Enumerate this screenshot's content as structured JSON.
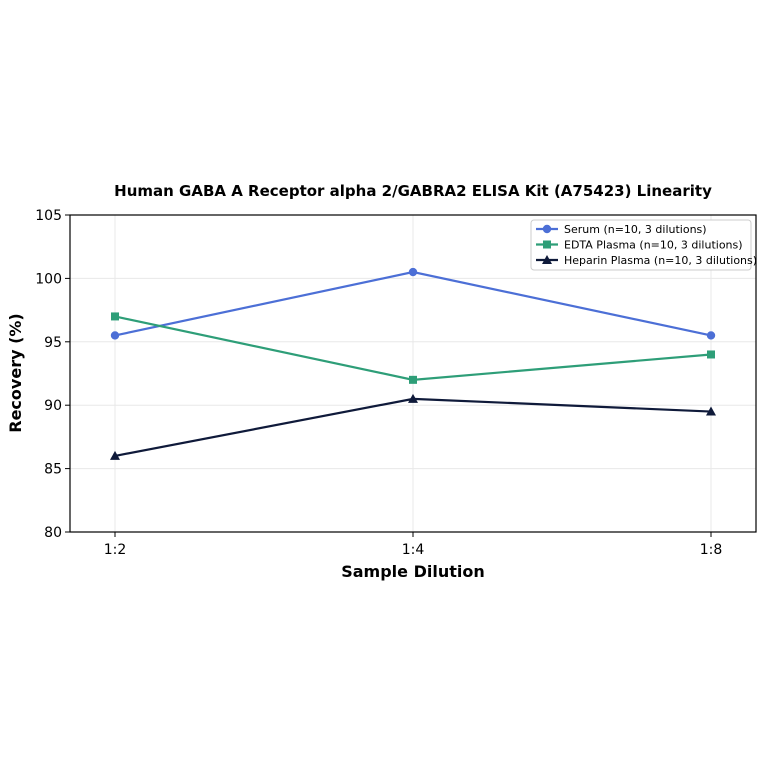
{
  "chart_data": {
    "type": "line",
    "title": "Human GABA A Receptor alpha 2/GABRA2 ELISA Kit (A75423) Linearity",
    "xlabel": "Sample Dilution",
    "ylabel": "Recovery (%)",
    "categories": [
      "1:2",
      "1:4",
      "1:8"
    ],
    "ylim": [
      80,
      105
    ],
    "yticks": [
      80,
      85,
      90,
      95,
      100,
      105
    ],
    "grid": true,
    "legend_position": "top-right",
    "series": [
      {
        "name": "Serum (n=10, 3 dilutions)",
        "values": [
          95.5,
          100.5,
          95.5
        ],
        "color": "#4c6fd6",
        "marker": "circle"
      },
      {
        "name": "EDTA Plasma (n=10, 3 dilutions)",
        "values": [
          97,
          92,
          94
        ],
        "color": "#2e9e78",
        "marker": "square"
      },
      {
        "name": "Heparin Plasma (n=10, 3 dilutions)",
        "values": [
          86,
          90.5,
          89.5
        ],
        "color": "#0f1a3a",
        "marker": "triangle"
      }
    ]
  }
}
